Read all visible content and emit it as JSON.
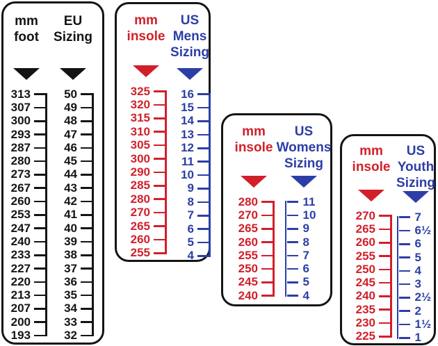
{
  "colors": {
    "black": "#141414",
    "red": "#d1202a",
    "blue": "#2c3ea6",
    "panel_border": "#141414",
    "background": "#ffffff"
  },
  "panels": [
    {
      "name": "mm foot to EU Sizing",
      "columns": [
        {
          "header": "mm foot",
          "color": "#141414",
          "pointer_icon": "down-triangle",
          "mirrored": false,
          "values": [
            "313",
            "307",
            "300",
            "293",
            "287",
            "280",
            "273",
            "267",
            "260",
            "253",
            "247",
            "240",
            "233",
            "227",
            "220",
            "213",
            "207",
            "200",
            "193"
          ]
        },
        {
          "header": "EU Sizing",
          "color": "#141414",
          "pointer_icon": "down-triangle",
          "mirrored": false,
          "values": [
            "50",
            "49",
            "48",
            "47",
            "46",
            "45",
            "44",
            "43",
            "42",
            "41",
            "40",
            "39",
            "38",
            "37",
            "36",
            "35",
            "34",
            "33",
            "32"
          ]
        }
      ]
    },
    {
      "name": "mm insole to US Mens Sizing",
      "columns": [
        {
          "header": "mm insole",
          "color": "#d1202a",
          "pointer_icon": "down-triangle",
          "mirrored": false,
          "values": [
            "325",
            "320",
            "315",
            "310",
            "305",
            "300",
            "290",
            "285",
            "280",
            "270",
            "265",
            "260",
            "255"
          ]
        },
        {
          "header": "US Mens Sizing",
          "color": "#2c3ea6",
          "pointer_icon": "down-triangle",
          "mirrored": false,
          "values": [
            "16",
            "15",
            "14",
            "13",
            "12",
            "11",
            "10",
            "9",
            "8",
            "7",
            "6",
            "5",
            "4"
          ]
        }
      ]
    },
    {
      "name": "mm insole to US Womens Sizing",
      "columns": [
        {
          "header": "mm insole",
          "color": "#d1202a",
          "pointer_icon": "down-triangle",
          "mirrored": false,
          "values": [
            "280",
            "270",
            "265",
            "260",
            "255",
            "250",
            "245",
            "240"
          ]
        },
        {
          "header": "US Womens Sizing",
          "color": "#2c3ea6",
          "pointer_icon": "down-triangle",
          "mirrored": true,
          "values": [
            "11",
            "10",
            "9",
            "8",
            "7",
            "6",
            "5",
            "4"
          ]
        }
      ]
    },
    {
      "name": "mm insole to US Youth Sizing",
      "columns": [
        {
          "header": "mm insole",
          "color": "#d1202a",
          "pointer_icon": "down-triangle",
          "mirrored": false,
          "values": [
            "270",
            "265",
            "260",
            "255",
            "250",
            "245",
            "240",
            "235",
            "230",
            "225"
          ]
        },
        {
          "header": "US Youth Sizing",
          "color": "#2c3ea6",
          "pointer_icon": "down-triangle",
          "mirrored": true,
          "values": [
            "7",
            "6½",
            "6",
            "5",
            "4",
            "3",
            "2½",
            "2",
            "1½",
            "1"
          ]
        }
      ]
    }
  ]
}
